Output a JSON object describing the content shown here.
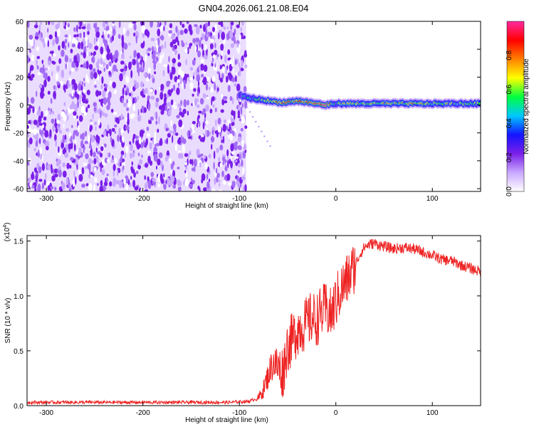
{
  "title": "GN04.2026.061.21.08.E04",
  "chart_data": [
    {
      "type": "heatmap",
      "name": "spectrogram",
      "xlabel": "Height of straight line (km)",
      "ylabel": "Frequency (Hz)",
      "xlim": [
        -320,
        150
      ],
      "ylim": [
        -62,
        60
      ],
      "xticks": [
        -300,
        -200,
        -100,
        0,
        100
      ],
      "yticks": [
        -60,
        -40,
        -20,
        0,
        20,
        40,
        60
      ],
      "colorbar": {
        "label": "Normalized spectral amplitude",
        "range": [
          0.0,
          1.0
        ],
        "ticks": [
          "0.0",
          "0.2",
          "0.4",
          "0.6",
          "0.8"
        ],
        "tick_values": [
          0.0,
          0.2,
          0.4,
          0.6,
          0.8
        ],
        "colors": [
          "#ffffff",
          "#c9a8ff",
          "#7a1fe8",
          "#1414ff",
          "#00c8ff",
          "#00ff40",
          "#ffff00",
          "#ff8000",
          "#ff0000",
          "#ff2aa0"
        ]
      },
      "noise_region_x": [
        -320,
        -93
      ],
      "signal_band": {
        "x": [
          -100,
          -90,
          -80,
          -70,
          -60,
          -50,
          -40,
          -30,
          -20,
          -10,
          0,
          20,
          40,
          60,
          80,
          100,
          120,
          150
        ],
        "freq": [
          7,
          5,
          4,
          3,
          2,
          2,
          3,
          2,
          1,
          0,
          1,
          1,
          1,
          1,
          1,
          1,
          1,
          1
        ],
        "amplitude": [
          0.35,
          0.45,
          0.55,
          0.6,
          0.7,
          0.8,
          0.7,
          0.75,
          0.9,
          0.95,
          0.5,
          0.6,
          0.65,
          0.6,
          0.7,
          0.6,
          0.55,
          0.6
        ]
      }
    },
    {
      "type": "line",
      "name": "snr",
      "xlabel": "Height of straight line (km)",
      "ylabel": "SNR (10 * v/v)",
      "y_multiplier": "(x10",
      "y_multiplier_exp": "4",
      "y_multiplier_close": ")",
      "xlim": [
        -320,
        150
      ],
      "ylim": [
        0,
        1.55
      ],
      "xticks": [
        -300,
        -200,
        -100,
        0,
        100
      ],
      "yticks": [
        0.0,
        0.5,
        1.0,
        1.5
      ],
      "ytick_labels": [
        "0.0",
        "0.5",
        "1.0",
        "1.5"
      ],
      "color": "#ee2222",
      "series": [
        {
          "x": [
            -320,
            -300,
            -250,
            -200,
            -150,
            -110,
            -90,
            -80,
            -75,
            -70,
            -65,
            -60,
            -55,
            -50,
            -45,
            -40,
            -35,
            -30,
            -25,
            -20,
            -15,
            -10,
            -5,
            0,
            5,
            10,
            15,
            20,
            25,
            30,
            35,
            40,
            50,
            60,
            70,
            80,
            90,
            100,
            110,
            120,
            130,
            140,
            150
          ],
          "y": [
            0.03,
            0.03,
            0.03,
            0.03,
            0.03,
            0.03,
            0.04,
            0.07,
            0.15,
            0.28,
            0.4,
            0.35,
            0.3,
            0.55,
            0.6,
            0.7,
            0.72,
            0.75,
            0.8,
            0.78,
            0.85,
            0.88,
            0.82,
            0.95,
            1.05,
            1.12,
            1.2,
            1.28,
            1.38,
            1.45,
            1.47,
            1.48,
            1.45,
            1.43,
            1.44,
            1.43,
            1.4,
            1.37,
            1.33,
            1.32,
            1.28,
            1.25,
            1.22
          ]
        }
      ]
    }
  ]
}
